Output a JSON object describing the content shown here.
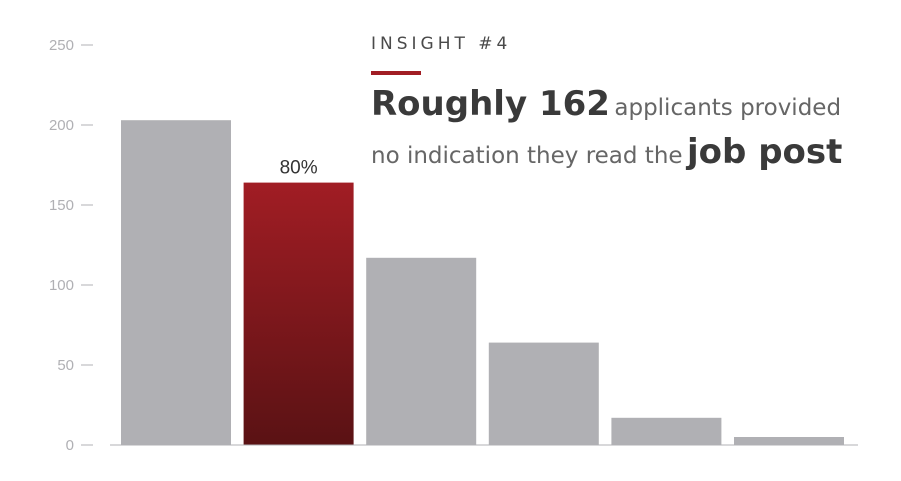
{
  "chart_data": {
    "type": "bar",
    "y_ticks": [
      0,
      50,
      100,
      150,
      200,
      250
    ],
    "ylim": [
      0,
      250
    ],
    "values": [
      203,
      164,
      117,
      64,
      17,
      5
    ],
    "highlight_index": 1,
    "highlight_label": "80%",
    "colors": {
      "bar": "#b0b0b4",
      "highlight_top": "#a11d24",
      "highlight_bottom": "#5a1214",
      "axis": "#b0b0b4"
    },
    "grid": false
  },
  "insight": {
    "kicker": "INSIGHT #4",
    "headline_strong_1": "Roughly 162",
    "headline_rest_1": "applicants provided",
    "headline_rest_2": "no indication they read the",
    "headline_strong_2": "job post",
    "accent_color": "#a11d24"
  }
}
